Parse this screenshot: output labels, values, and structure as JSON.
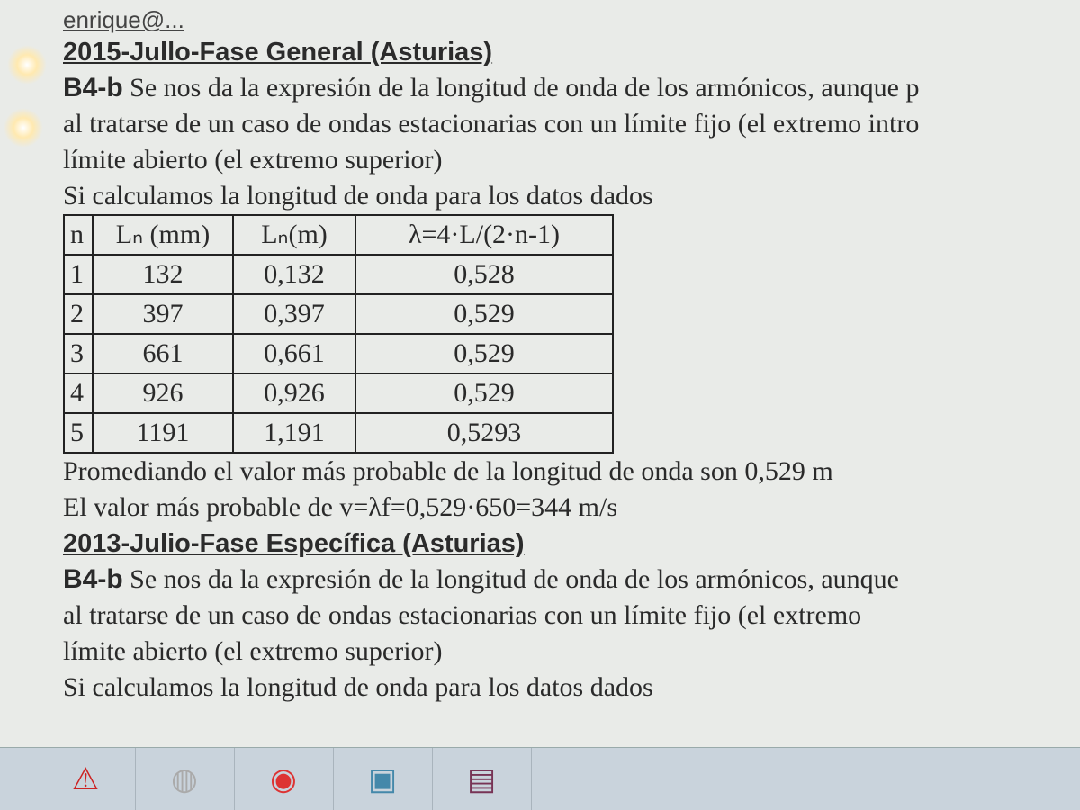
{
  "document": {
    "email_fragment": "enrique@...",
    "section1": {
      "heading": "2015-Jullo-Fase General (Asturias)",
      "label": "B4-b",
      "lines": [
        "Se nos da la expresión de la longitud de onda de los armónicos, aunque p",
        "al tratarse de un caso de ondas estacionarias con un límite fijo (el extremo intro",
        "límite abierto (el extremo superior)",
        "Si calculamos la longitud de onda para los datos dados"
      ],
      "table": {
        "headers": [
          "n",
          "Lₙ (mm)",
          "Lₙ(m)",
          "λ=4·L/(2·n-1)"
        ],
        "rows": [
          [
            "1",
            "132",
            "0,132",
            "0,528"
          ],
          [
            "2",
            "397",
            "0,397",
            "0,529"
          ],
          [
            "3",
            "661",
            "0,661",
            "0,529"
          ],
          [
            "4",
            "926",
            "0,926",
            "0,529"
          ],
          [
            "5",
            "1191",
            "1,191",
            "0,5293"
          ]
        ]
      },
      "conclusion": [
        "Promediando el valor más probable de la longitud de onda son 0,529 m",
        "El valor más probable de v=λf=0,529·650=344 m/s"
      ]
    },
    "section2": {
      "heading": "2013-Julio-Fase Específica (Asturias)",
      "label": "B4-b",
      "lines": [
        "Se nos da la expresión de la longitud de onda de los armónicos, aunque",
        "al tratarse de un caso de ondas estacionarias con un límite fijo (el extremo",
        "límite abierto (el extremo superior)",
        "Si calculamos la longitud de onda para los datos dados"
      ]
    }
  },
  "taskbar": {
    "items": [
      {
        "icon": "acrobat-icon"
      },
      {
        "icon": "app-icon"
      },
      {
        "icon": "chrome-icon"
      },
      {
        "icon": "image-viewer-icon"
      },
      {
        "icon": "winrar-icon"
      }
    ]
  }
}
